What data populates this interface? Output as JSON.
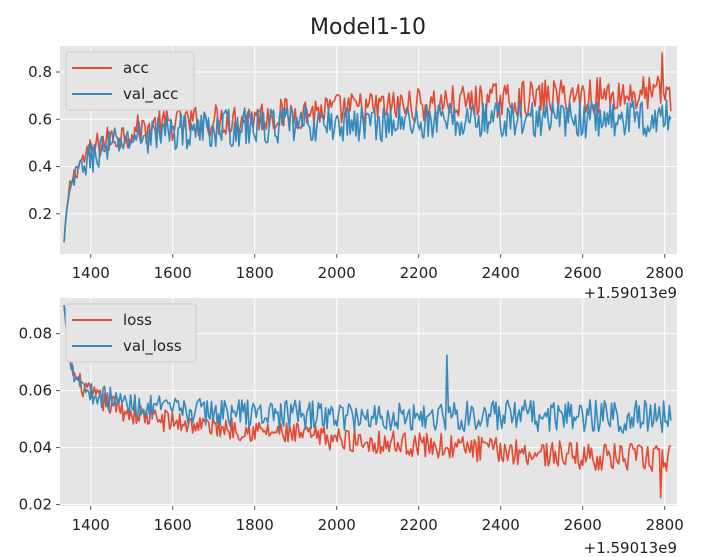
{
  "title": "Model1-10",
  "chart_data": [
    {
      "type": "line",
      "x_offset_label": "+1.59013e9",
      "xlim": [
        1325,
        2830
      ],
      "ylim": [
        0.03,
        0.91
      ],
      "x_ticks": [
        1400,
        1600,
        1800,
        2000,
        2200,
        2400,
        2600,
        2800
      ],
      "x_tick_labels": [
        "1400",
        "1600",
        "1800",
        "2000",
        "2200",
        "2400",
        "2600",
        "2800"
      ],
      "y_ticks": [
        0.2,
        0.4,
        0.6,
        0.8
      ],
      "y_tick_labels": [
        "0.2",
        "0.4",
        "0.6",
        "0.8"
      ],
      "grid": true,
      "legend_position": "top-left",
      "series": [
        {
          "name": "acc",
          "color": "#E24A33",
          "x_range": [
            1335,
            2815
          ],
          "trend": [
            [
              1335,
              0.08
            ],
            [
              1340,
              0.2
            ],
            [
              1350,
              0.33
            ],
            [
              1375,
              0.42
            ],
            [
              1425,
              0.5
            ],
            [
              1500,
              0.55
            ],
            [
              1600,
              0.58
            ],
            [
              1800,
              0.61
            ],
            [
              2000,
              0.64
            ],
            [
              2200,
              0.66
            ],
            [
              2400,
              0.68
            ],
            [
              2600,
              0.7
            ],
            [
              2815,
              0.71
            ]
          ],
          "band": [
            [
              1335,
              0.02
            ],
            [
              1400,
              0.06
            ],
            [
              1600,
              0.07
            ],
            [
              2000,
              0.07
            ],
            [
              2800,
              0.08
            ]
          ],
          "max_point": [
            2795,
            0.88
          ]
        },
        {
          "name": "val_acc",
          "color": "#348ABD",
          "x_range": [
            1335,
            2815
          ],
          "trend": [
            [
              1335,
              0.08
            ],
            [
              1340,
              0.2
            ],
            [
              1350,
              0.31
            ],
            [
              1375,
              0.4
            ],
            [
              1425,
              0.47
            ],
            [
              1500,
              0.52
            ],
            [
              1600,
              0.55
            ],
            [
              1800,
              0.57
            ],
            [
              2000,
              0.58
            ],
            [
              2200,
              0.59
            ],
            [
              2400,
              0.6
            ],
            [
              2600,
              0.6
            ],
            [
              2815,
              0.61
            ]
          ],
          "band": [
            [
              1335,
              0.02
            ],
            [
              1400,
              0.07
            ],
            [
              1600,
              0.08
            ],
            [
              2000,
              0.08
            ],
            [
              2800,
              0.08
            ]
          ]
        }
      ]
    },
    {
      "type": "line",
      "x_offset_label": "+1.59013e9",
      "xlim": [
        1325,
        2830
      ],
      "ylim": [
        0.0195,
        0.0925
      ],
      "x_ticks": [
        1400,
        1600,
        1800,
        2000,
        2200,
        2400,
        2600,
        2800
      ],
      "x_tick_labels": [
        "1400",
        "1600",
        "1800",
        "2000",
        "2200",
        "2400",
        "2600",
        "2800"
      ],
      "y_ticks": [
        0.02,
        0.04,
        0.06,
        0.08
      ],
      "y_tick_labels": [
        "0.02",
        "0.04",
        "0.06",
        "0.08"
      ],
      "grid": true,
      "legend_position": "top-left",
      "series": [
        {
          "name": "loss",
          "color": "#E24A33",
          "x_range": [
            1335,
            2815
          ],
          "trend": [
            [
              1335,
              0.09
            ],
            [
              1345,
              0.075
            ],
            [
              1360,
              0.065
            ],
            [
              1400,
              0.058
            ],
            [
              1500,
              0.052
            ],
            [
              1600,
              0.049
            ],
            [
              1800,
              0.046
            ],
            [
              2000,
              0.043
            ],
            [
              2200,
              0.041
            ],
            [
              2400,
              0.039
            ],
            [
              2600,
              0.037
            ],
            [
              2815,
              0.036
            ]
          ],
          "band": [
            [
              1335,
              0.003
            ],
            [
              1400,
              0.004
            ],
            [
              1800,
              0.004
            ],
            [
              2800,
              0.005
            ]
          ],
          "min_point": [
            2790,
            0.0225
          ]
        },
        {
          "name": "val_loss",
          "color": "#348ABD",
          "x_range": [
            1335,
            2815
          ],
          "trend": [
            [
              1335,
              0.09
            ],
            [
              1345,
              0.075
            ],
            [
              1360,
              0.066
            ],
            [
              1400,
              0.059
            ],
            [
              1500,
              0.055
            ],
            [
              1600,
              0.053
            ],
            [
              1800,
              0.052
            ],
            [
              2000,
              0.051
            ],
            [
              2200,
              0.051
            ],
            [
              2400,
              0.051
            ],
            [
              2600,
              0.051
            ],
            [
              2815,
              0.051
            ]
          ],
          "band": [
            [
              1335,
              0.003
            ],
            [
              1400,
              0.004
            ],
            [
              1800,
              0.005
            ],
            [
              2800,
              0.006
            ]
          ],
          "max_point": [
            2270,
            0.0725
          ]
        }
      ]
    }
  ]
}
